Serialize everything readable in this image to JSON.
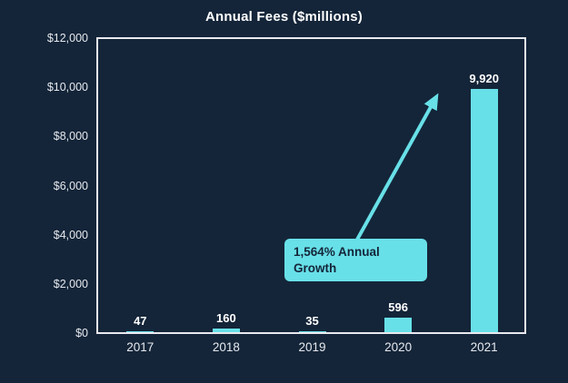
{
  "title": "Annual Fees ($millions)",
  "colors": {
    "background": "#142539",
    "bar": "#68E0E8",
    "plot_border": "#E9E9EF",
    "label_text": "#FFFFFF",
    "axis_text": "#E6E9EE",
    "annotation_bg": "#68E0E8",
    "annotation_text": "#142539"
  },
  "annotation": {
    "line1": "1,564% Annual",
    "line2": "Growth",
    "full_text": "1,564% Annual Growth"
  },
  "chart_data": {
    "type": "bar",
    "title": "Annual Fees ($millions)",
    "categories": [
      "2017",
      "2018",
      "2019",
      "2020",
      "2021"
    ],
    "values": [
      47,
      160,
      35,
      596,
      9920
    ],
    "value_labels": [
      "47",
      "160",
      "35",
      "596",
      "9,920"
    ],
    "xlabel": "",
    "ylabel": "",
    "ylim": [
      0,
      12000
    ],
    "y_tick_values": [
      0,
      2000,
      4000,
      6000,
      8000,
      10000,
      12000
    ],
    "y_tick_labels": [
      "$0",
      "$2,000",
      "$4,000",
      "$6,000",
      "$8,000",
      "$10,000",
      "$12,000"
    ],
    "grid": false,
    "legend": false,
    "bar_color": "#68E0E8",
    "annotation": "1,564% Annual Growth"
  }
}
